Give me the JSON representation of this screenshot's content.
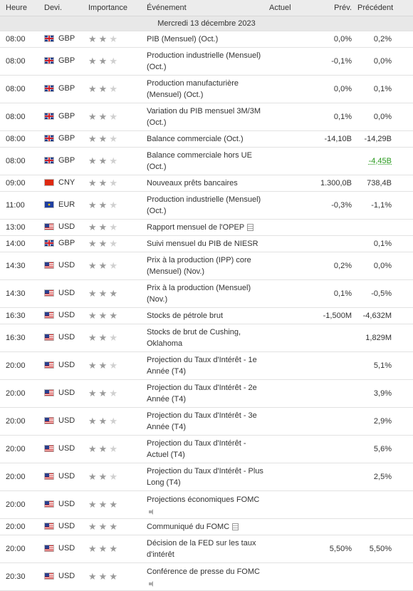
{
  "headers": {
    "time": "Heure",
    "currency": "Devi.",
    "importance": "Importance",
    "event": "Événement",
    "actual": "Actuel",
    "forecast": "Prév.",
    "previous": "Précédent"
  },
  "day_label": "Mercredi 13 décembre 2023",
  "colors": {
    "header_bg": "#ececec",
    "day_bg": "#e8e8e8",
    "positive": "#2a9a1f"
  },
  "rows": [
    {
      "time": "08:00",
      "currency": "GBP",
      "stars": 2,
      "event": "PIB (Mensuel) (Oct.)",
      "actual": "",
      "forecast": "0,0%",
      "previous": "0,2%",
      "h": 22
    },
    {
      "time": "08:00",
      "currency": "GBP",
      "stars": 2,
      "event": "Production industrielle (Mensuel) (Oct.)",
      "actual": "",
      "forecast": "-0,1%",
      "previous": "0,0%",
      "h": 39
    },
    {
      "time": "08:00",
      "currency": "GBP",
      "stars": 2,
      "event": "Production manufacturière (Mensuel) (Oct.)",
      "actual": "",
      "forecast": "0,0%",
      "previous": "0,1%",
      "h": 39
    },
    {
      "time": "08:00",
      "currency": "GBP",
      "stars": 2,
      "event": "Variation du PIB mensuel 3M/3M (Oct.)",
      "actual": "",
      "forecast": "0,1%",
      "previous": "0,0%",
      "h": 39
    },
    {
      "time": "08:00",
      "currency": "GBP",
      "stars": 2,
      "event": "Balance commerciale (Oct.)",
      "actual": "",
      "forecast": "-14,10B",
      "previous": "-14,29B",
      "h": 22
    },
    {
      "time": "08:00",
      "currency": "GBP",
      "stars": 2,
      "event": "Balance commerciale hors UE (Oct.)",
      "actual": "",
      "forecast": "",
      "previous": "-4,45B",
      "previous_color": "green",
      "h": 39
    },
    {
      "time": "09:00",
      "currency": "CNY",
      "stars": 2,
      "event": "Nouveaux prêts bancaires",
      "actual": "",
      "forecast": "1.300,0B",
      "previous": "738,4B",
      "h": 22
    },
    {
      "time": "11:00",
      "currency": "EUR",
      "stars": 2,
      "event": "Production industrielle (Mensuel) (Oct.)",
      "actual": "",
      "forecast": "-0,3%",
      "previous": "-1,1%",
      "h": 39
    },
    {
      "time": "13:00",
      "currency": "USD",
      "stars": 2,
      "event": "Rapport mensuel de l'OPEP",
      "icon": "doc-icon",
      "actual": "",
      "forecast": "",
      "previous": "",
      "h": 22
    },
    {
      "time": "14:00",
      "currency": "GBP",
      "stars": 2,
      "event": "Suivi mensuel du PIB de NIESR",
      "actual": "",
      "forecast": "",
      "previous": "0,1%",
      "h": 22
    },
    {
      "time": "14:30",
      "currency": "USD",
      "stars": 2,
      "event": "Prix à la production (IPP) core (Mensuel) (Nov.)",
      "actual": "",
      "forecast": "0,2%",
      "previous": "0,0%",
      "h": 39
    },
    {
      "time": "14:30",
      "currency": "USD",
      "stars": 3,
      "event": "Prix à la production (Mensuel) (Nov.)",
      "actual": "",
      "forecast": "0,1%",
      "previous": "-0,5%",
      "h": 39
    },
    {
      "time": "16:30",
      "currency": "USD",
      "stars": 3,
      "event": "Stocks de pétrole brut",
      "actual": "",
      "forecast": "-1,500M",
      "previous": "-4,632M",
      "h": 22
    },
    {
      "time": "16:30",
      "currency": "USD",
      "stars": 2,
      "event": "Stocks de brut de Cushing, Oklahoma",
      "actual": "",
      "forecast": "",
      "previous": "1,829M",
      "h": 39
    },
    {
      "time": "20:00",
      "currency": "USD",
      "stars": 2,
      "event": "Projection du Taux d'Intérêt - 1e Année (T4)",
      "actual": "",
      "forecast": "",
      "previous": "5,1%",
      "h": 39
    },
    {
      "time": "20:00",
      "currency": "USD",
      "stars": 2,
      "event": "Projection du Taux d'Intérêt - 2e Année (T4)",
      "actual": "",
      "forecast": "",
      "previous": "3,9%",
      "h": 39
    },
    {
      "time": "20:00",
      "currency": "USD",
      "stars": 2,
      "event": "Projection du Taux d'Intérêt - 3e Année (T4)",
      "actual": "",
      "forecast": "",
      "previous": "2,9%",
      "h": 39
    },
    {
      "time": "20:00",
      "currency": "USD",
      "stars": 2,
      "event": "Projection du Taux d'Intérêt - Actuel (T4)",
      "actual": "",
      "forecast": "",
      "previous": "5,6%",
      "h": 39
    },
    {
      "time": "20:00",
      "currency": "USD",
      "stars": 2,
      "event": "Projection du Taux d'Intérêt - Plus Long (T4)",
      "actual": "",
      "forecast": "",
      "previous": "2,5%",
      "h": 39
    },
    {
      "time": "20:00",
      "currency": "USD",
      "stars": 3,
      "event": "Projections économiques FOMC",
      "icon": "speaker-icon",
      "icon_newline": true,
      "actual": "",
      "forecast": "",
      "previous": "",
      "h": 39
    },
    {
      "time": "20:00",
      "currency": "USD",
      "stars": 3,
      "event": "Communiqué du FOMC",
      "icon": "doc-icon",
      "actual": "",
      "forecast": "",
      "previous": "",
      "h": 22
    },
    {
      "time": "20:00",
      "currency": "USD",
      "stars": 3,
      "event": "Décision de la FED sur les taux d'intérêt",
      "actual": "",
      "forecast": "5,50%",
      "previous": "5,50%",
      "h": 39
    },
    {
      "time": "20:30",
      "currency": "USD",
      "stars": 3,
      "event": "Conférence de presse du FOMC",
      "icon": "speaker-icon",
      "icon_newline": true,
      "actual": "",
      "forecast": "",
      "previous": "",
      "h": 39
    }
  ]
}
